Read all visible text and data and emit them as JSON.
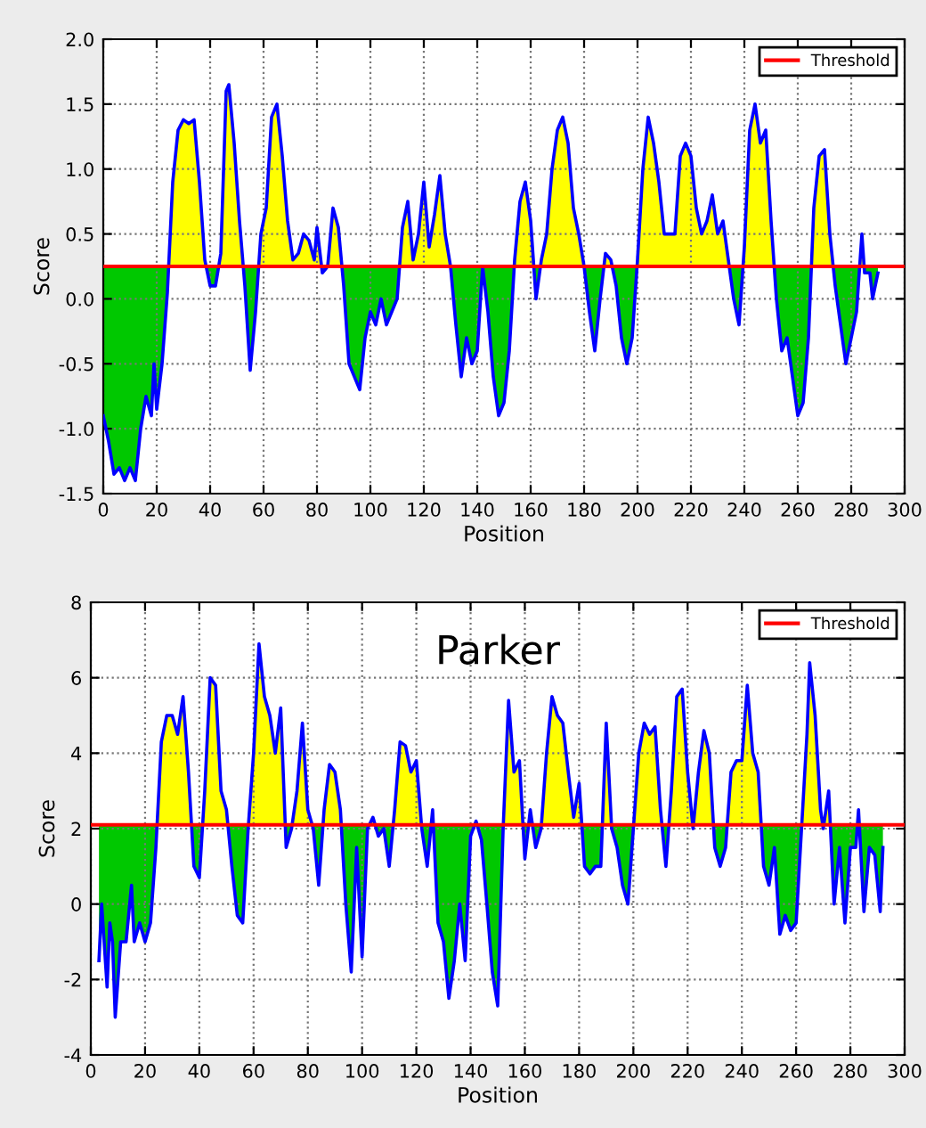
{
  "chart_data": [
    {
      "type": "line",
      "xlabel": "Position",
      "ylabel": "Score",
      "xlim": [
        0,
        300
      ],
      "ylim": [
        -1.5,
        2.0
      ],
      "xticks": [
        0,
        20,
        40,
        60,
        80,
        100,
        120,
        140,
        160,
        180,
        200,
        220,
        240,
        260,
        280,
        300
      ],
      "yticks": [
        -1.5,
        {
          "value": -1,
          "label": "-1.0"
        },
        -0.5,
        {
          "value": 0,
          "label": "0.0"
        },
        0.5,
        {
          "value": 1,
          "label": "1.0"
        },
        1.5,
        {
          "value": 2,
          "label": "2.0"
        }
      ],
      "grid": true,
      "legend": "top right",
      "ref_lines": [
        {
          "axis": "y",
          "value": 0.25,
          "label": "Threshold",
          "color": "#ff0000"
        }
      ],
      "series": [
        {
          "color": "#0000ff",
          "colors": [
            "#00c800",
            "#00c800",
            "#00c800",
            "#00c800",
            "#00c800",
            "#00c800",
            "#00c800",
            "#00c800",
            "#00c800",
            "#00c800",
            "#00c800",
            "#00c800",
            "#00c800",
            "#00c800",
            "#ffff00",
            "#ffff00",
            "#ffff00",
            "#ffff00",
            "#ffff00",
            "#ffff00",
            "#ffff00",
            "#00c800",
            "#00c800",
            "#ffff00",
            "#ffff00",
            "#ffff00",
            "#ffff00",
            "#ffff00",
            "#00c800",
            "#00c800",
            "#00c800",
            "#ffff00",
            "#ffff00",
            "#ffff00",
            "#ffff00",
            "#ffff00",
            "#ffff00",
            "#ffff00",
            "#ffff00",
            "#ffff00",
            "#ffff00",
            "#ffff00",
            "#ffff00",
            "#00c800",
            "#ffff00",
            "#ffff00",
            "#ffff00",
            "#00c800",
            "#00c800",
            "#00c800",
            "#00c800",
            "#00c800",
            "#00c800",
            "#00c800",
            "#00c800",
            "#00c800",
            "#00c800",
            "#00c800",
            "#ffff00",
            "#ffff00",
            "#ffff00",
            "#ffff00",
            "#ffff00",
            "#ffff00",
            "#ffff00",
            "#ffff00",
            "#ffff00",
            "#ffff00",
            "#00c800",
            "#00c800",
            "#00c800",
            "#00c800",
            "#00c800",
            "#ffff00",
            "#00c800",
            "#00c800",
            "#00c800",
            "#00c800",
            "#00c800",
            "#ffff00",
            "#ffff00",
            "#ffff00",
            "#ffff00",
            "#00c800",
            "#ffff00",
            "#ffff00",
            "#ffff00",
            "#ffff00",
            "#ffff00",
            "#ffff00",
            "#ffff00",
            "#ffff00",
            "#ffff00",
            "#00c800",
            "#00c800",
            "#00c800",
            "#ffff00",
            "#ffff00",
            "#00c800",
            "#00c800",
            "#00c800",
            "#00c800",
            "#ffff00",
            "#ffff00",
            "#ffff00",
            "#ffff00",
            "#ffff00",
            "#ffff00",
            "#ffff00",
            "#ffff00",
            "#ffff00",
            "#ffff00",
            "#ffff00",
            "#ffff00",
            "#ffff00",
            "#ffff00",
            "#ffff00",
            "#ffff00",
            "#ffff00",
            "#ffff00",
            "#00c800",
            "#00c800",
            "#ffff00",
            "#ffff00",
            "#ffff00",
            "#ffff00",
            "#ffff00",
            "#ffff00",
            "#00c800",
            "#00c800",
            "#00c800",
            "#00c800",
            "#00c800",
            "#00c800",
            "#00c800",
            "#ffff00",
            "#ffff00",
            "#ffff00",
            "#ffff00",
            "#00c800",
            "#00c800",
            "#00c800",
            "#00c800",
            "#00c800",
            "#ffff00",
            "#00c800",
            "#00c800",
            "#00c800",
            "#00c800"
          ],
          "x": [
            0,
            2,
            4,
            6,
            8,
            10,
            12,
            14,
            16,
            18,
            19,
            20,
            22,
            24,
            26,
            28,
            30,
            32,
            34,
            36,
            38,
            40,
            42,
            44,
            46,
            47,
            49,
            51,
            53,
            55,
            57,
            59,
            61,
            63,
            65,
            67,
            69,
            71,
            73,
            75,
            77,
            79,
            80,
            82,
            84,
            86,
            88,
            90,
            92,
            94,
            96,
            98,
            100,
            102,
            104,
            106,
            108,
            110,
            112,
            114,
            116,
            118,
            120,
            122,
            124,
            126,
            128,
            130,
            132,
            134,
            136,
            138,
            140,
            142,
            144,
            146,
            148,
            150,
            152,
            154,
            156,
            158,
            160,
            162,
            164,
            166,
            168,
            170,
            172,
            174,
            176,
            178,
            180,
            182,
            184,
            186,
            188,
            190,
            192,
            194,
            196,
            198,
            200,
            202,
            204,
            206,
            208,
            210,
            212,
            214,
            216,
            218,
            220,
            222,
            224,
            226,
            228,
            230,
            232,
            234,
            236,
            238,
            240,
            242,
            244,
            246,
            248,
            250,
            252,
            254,
            256,
            258,
            260,
            262,
            264,
            266,
            268,
            270,
            272,
            274,
            276,
            278,
            280,
            282,
            284,
            285,
            287,
            288,
            290
          ],
          "values": [
            -0.9,
            -1.1,
            -1.35,
            -1.3,
            -1.4,
            -1.3,
            -1.4,
            -1.0,
            -0.75,
            -0.9,
            -0.5,
            -0.85,
            -0.5,
            0.05,
            0.9,
            1.3,
            1.38,
            1.35,
            1.38,
            0.9,
            0.3,
            0.1,
            0.1,
            0.35,
            1.6,
            1.65,
            1.2,
            0.6,
            0.1,
            -0.55,
            -0.1,
            0.5,
            0.7,
            1.4,
            1.5,
            1.1,
            0.6,
            0.3,
            0.35,
            0.5,
            0.45,
            0.3,
            0.55,
            0.2,
            0.25,
            0.7,
            0.55,
            0.1,
            -0.5,
            -0.6,
            -0.7,
            -0.3,
            -0.1,
            -0.2,
            0.0,
            -0.2,
            -0.1,
            0.0,
            0.55,
            0.75,
            0.3,
            0.5,
            0.9,
            0.4,
            0.65,
            0.95,
            0.5,
            0.25,
            -0.2,
            -0.6,
            -0.3,
            -0.5,
            -0.4,
            0.25,
            -0.1,
            -0.6,
            -0.9,
            -0.8,
            -0.4,
            0.3,
            0.75,
            0.9,
            0.6,
            0.0,
            0.3,
            0.5,
            1.0,
            1.3,
            1.4,
            1.2,
            0.7,
            0.5,
            0.25,
            -0.1,
            -0.4,
            0.0,
            0.35,
            0.3,
            0.1,
            -0.3,
            -0.5,
            -0.3,
            0.3,
            1.0,
            1.4,
            1.2,
            0.9,
            0.5,
            0.5,
            0.5,
            1.1,
            1.2,
            1.1,
            0.7,
            0.5,
            0.6,
            0.8,
            0.5,
            0.6,
            0.3,
            0.0,
            -0.2,
            0.4,
            1.3,
            1.5,
            1.2,
            1.3,
            0.6,
            0.0,
            -0.4,
            -0.3,
            -0.6,
            -0.9,
            -0.8,
            -0.3,
            0.7,
            1.1,
            1.15,
            0.5,
            0.1,
            -0.2,
            -0.5,
            -0.3,
            -0.1,
            0.5,
            0.2,
            0.2,
            0.0,
            0.2
          ]
        }
      ]
    },
    {
      "type": "line",
      "title": "Parker",
      "xlabel": "Position",
      "ylabel": "Score",
      "xlim": [
        0,
        300
      ],
      "ylim": [
        -4,
        8
      ],
      "xticks": [
        0,
        20,
        40,
        60,
        80,
        100,
        120,
        140,
        160,
        180,
        200,
        220,
        240,
        260,
        280,
        300
      ],
      "yticks": [
        -4,
        -2,
        0,
        2,
        4,
        6,
        8
      ],
      "grid": true,
      "legend": "top right",
      "ref_lines": [
        {
          "axis": "y",
          "value": 2.1,
          "label": "Threshold",
          "color": "#ff0000"
        }
      ],
      "series": [
        {
          "color": "#0000ff",
          "colors": [
            "#00c800",
            "#00c800",
            "#00c800",
            "#00c800",
            "#00c800",
            "#00c800",
            "#00c800",
            "#00c800",
            "#00c800",
            "#00c800",
            "#00c800",
            "#00c800",
            "#00c800",
            "#00c800",
            "#ffff00",
            "#ffff00",
            "#ffff00",
            "#ffff00",
            "#ffff00",
            "#ffff00",
            "#00c800",
            "#00c800",
            "#ffff00",
            "#ffff00",
            "#ffff00",
            "#ffff00",
            "#ffff00",
            "#00c800",
            "#00c800",
            "#00c800",
            "#00c800",
            "#ffff00",
            "#ffff00",
            "#ffff00",
            "#ffff00",
            "#ffff00",
            "#ffff00",
            "#00c800",
            "#00c800",
            "#ffff00",
            "#ffff00",
            "#ffff00",
            "#00c800",
            "#00c800",
            "#ffff00",
            "#ffff00",
            "#ffff00",
            "#ffff00",
            "#00c800",
            "#00c800",
            "#00c800",
            "#00c800",
            "#00c800",
            "#ffff00",
            "#00c800",
            "#00c800",
            "#00c800",
            "#ffff00",
            "#ffff00",
            "#ffff00",
            "#ffff00",
            "#ffff00",
            "#00c800",
            "#00c800",
            "#ffff00",
            "#00c800",
            "#00c800",
            "#00c800",
            "#00c800",
            "#00c800",
            "#00c800",
            "#00c800",
            "#ffff00",
            "#00c800",
            "#00c800",
            "#00c800",
            "#00c800",
            "#00c800",
            "#ffff00",
            "#ffff00",
            "#ffff00",
            "#00c800",
            "#ffff00",
            "#00c800",
            "#00c800",
            "#ffff00",
            "#ffff00",
            "#ffff00",
            "#ffff00",
            "#ffff00",
            "#ffff00",
            "#ffff00",
            "#00c800",
            "#00c800",
            "#00c800",
            "#00c800",
            "#ffff00",
            "#00c800",
            "#00c800",
            "#00c800",
            "#00c800",
            "#00c800",
            "#ffff00",
            "#ffff00",
            "#ffff00",
            "#ffff00",
            "#ffff00",
            "#00c800",
            "#ffff00",
            "#ffff00",
            "#ffff00",
            "#ffff00",
            "#00c800",
            "#ffff00",
            "#ffff00",
            "#ffff00",
            "#00c800",
            "#00c800",
            "#00c800",
            "#ffff00",
            "#ffff00",
            "#ffff00",
            "#ffff00",
            "#ffff00",
            "#ffff00",
            "#00c800",
            "#00c800",
            "#00c800",
            "#00c800",
            "#00c800",
            "#00c800",
            "#00c800",
            "#00c800",
            "#ffff00",
            "#ffff00",
            "#ffff00",
            "#ffff00",
            "#00c800",
            "#ffff00",
            "#00c800",
            "#00c800",
            "#00c800",
            "#00c800",
            "#00c800",
            "#ffff00",
            "#00c800",
            "#00c800",
            "#00c800",
            "#00c800",
            "#00c800"
          ],
          "x": [
            3,
            4,
            6,
            7,
            8,
            9,
            11,
            13,
            15,
            16,
            18,
            20,
            22,
            24,
            26,
            28,
            30,
            32,
            34,
            36,
            38,
            40,
            42,
            44,
            46,
            48,
            50,
            52,
            54,
            56,
            58,
            60,
            62,
            64,
            66,
            68,
            70,
            72,
            74,
            76,
            78,
            80,
            82,
            84,
            86,
            88,
            90,
            92,
            94,
            96,
            98,
            100,
            102,
            104,
            106,
            108,
            110,
            112,
            114,
            116,
            118,
            120,
            122,
            124,
            126,
            128,
            130,
            132,
            134,
            136,
            138,
            140,
            142,
            144,
            146,
            148,
            150,
            152,
            154,
            156,
            158,
            160,
            162,
            164,
            166,
            168,
            170,
            172,
            174,
            176,
            178,
            180,
            182,
            184,
            186,
            188,
            190,
            192,
            194,
            196,
            198,
            200,
            202,
            204,
            206,
            208,
            210,
            212,
            214,
            216,
            218,
            220,
            222,
            224,
            226,
            228,
            230,
            232,
            234,
            236,
            238,
            240,
            242,
            244,
            246,
            248,
            250,
            252,
            254,
            256,
            258,
            260,
            262,
            264,
            265,
            267,
            269,
            270,
            272,
            274,
            276,
            278,
            280,
            282,
            283,
            285,
            287,
            289,
            291,
            292
          ],
          "values": [
            -1.5,
            0.0,
            -2.2,
            -0.5,
            -1.0,
            -3.0,
            -1.0,
            -1.0,
            0.5,
            -1.0,
            -0.5,
            -1.0,
            -0.5,
            1.5,
            4.3,
            5.0,
            5.0,
            4.5,
            5.5,
            3.5,
            1.0,
            0.7,
            3.0,
            6.0,
            5.8,
            3.0,
            2.5,
            1.0,
            -0.3,
            -0.5,
            2.0,
            4.0,
            6.9,
            5.5,
            5.0,
            4.0,
            5.2,
            1.5,
            2.0,
            3.0,
            4.8,
            2.5,
            2.0,
            0.5,
            2.5,
            3.7,
            3.5,
            2.5,
            0.0,
            -1.8,
            1.5,
            -1.4,
            2.0,
            2.3,
            1.8,
            2.0,
            1.0,
            2.5,
            4.3,
            4.2,
            3.5,
            3.8,
            2.0,
            1.0,
            2.5,
            -0.5,
            -1.0,
            -2.5,
            -1.5,
            0.0,
            -1.5,
            1.8,
            2.2,
            1.7,
            0.0,
            -1.8,
            -2.7,
            2.0,
            5.4,
            3.5,
            3.8,
            1.2,
            2.5,
            1.5,
            2.0,
            4.0,
            5.5,
            5.0,
            4.8,
            3.5,
            2.3,
            3.2,
            1.0,
            0.8,
            1.0,
            1.0,
            4.8,
            2.0,
            1.5,
            0.5,
            0.0,
            2.0,
            4.0,
            4.8,
            4.5,
            4.7,
            2.5,
            1.0,
            3.0,
            5.5,
            5.7,
            3.5,
            2.0,
            3.5,
            4.6,
            4.0,
            1.5,
            1.0,
            1.5,
            3.5,
            3.8,
            3.8,
            5.8,
            4.0,
            3.5,
            1.0,
            0.5,
            1.5,
            -0.8,
            -0.3,
            -0.7,
            -0.5,
            2.0,
            4.5,
            6.4,
            5.0,
            2.5,
            2.0,
            3.0,
            0.0,
            1.5,
            -0.5,
            1.5,
            1.5,
            2.5,
            -0.2,
            1.5,
            1.3,
            -0.2,
            1.5
          ]
        }
      ]
    }
  ]
}
